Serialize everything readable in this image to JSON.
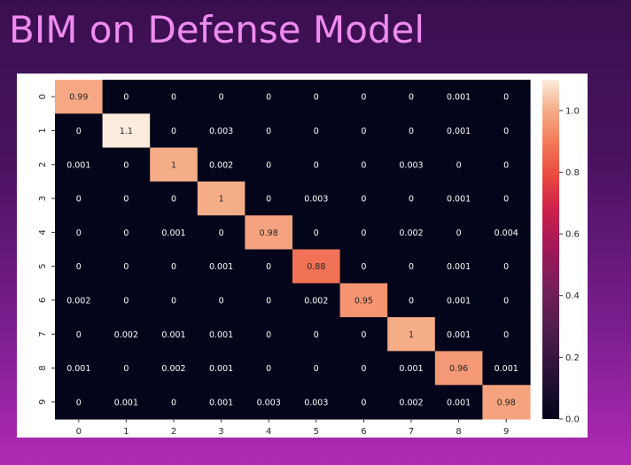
{
  "slide": {
    "title": "BIM on Defense Model"
  },
  "chart_data": {
    "type": "heatmap",
    "title": "",
    "xlabel": "",
    "ylabel": "",
    "x_categories": [
      "0",
      "1",
      "2",
      "3",
      "4",
      "5",
      "6",
      "7",
      "8",
      "9"
    ],
    "y_categories": [
      "0",
      "1",
      "2",
      "3",
      "4",
      "5",
      "6",
      "7",
      "8",
      "9"
    ],
    "values": [
      [
        0.99,
        0,
        0,
        0,
        0,
        0,
        0,
        0,
        0.001,
        0
      ],
      [
        0,
        1.1,
        0,
        0.003,
        0,
        0,
        0,
        0,
        0.001,
        0
      ],
      [
        0.001,
        0,
        1,
        0.002,
        0,
        0,
        0,
        0.003,
        0,
        0
      ],
      [
        0,
        0,
        0,
        1,
        0,
        0.003,
        0,
        0,
        0.001,
        0
      ],
      [
        0,
        0,
        0.001,
        0,
        0.98,
        0,
        0,
        0.002,
        0,
        0.004
      ],
      [
        0,
        0,
        0,
        0.001,
        0,
        0.88,
        0,
        0,
        0.001,
        0
      ],
      [
        0.002,
        0,
        0,
        0,
        0,
        0.002,
        0.95,
        0,
        0.001,
        0
      ],
      [
        0,
        0.002,
        0.001,
        0.001,
        0,
        0,
        0,
        1,
        0.001,
        0
      ],
      [
        0.001,
        0,
        0.002,
        0.001,
        0,
        0,
        0,
        0.001,
        0.96,
        0.001
      ],
      [
        0,
        0.001,
        0,
        0.001,
        0.003,
        0.003,
        0,
        0.002,
        0.001,
        0.98
      ]
    ],
    "colorbar": {
      "min": 0,
      "max": 1.1,
      "ticks": [
        "0.0",
        "0.2",
        "0.4",
        "0.6",
        "0.8",
        "1.0"
      ],
      "colormap": "rocket"
    },
    "annotations": true,
    "grid": false
  }
}
